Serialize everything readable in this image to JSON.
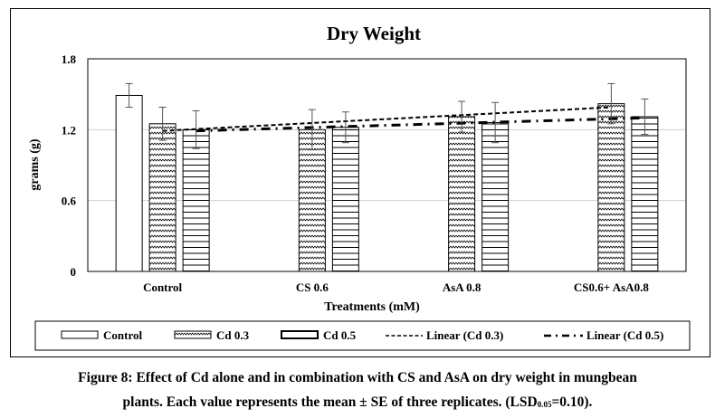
{
  "chart_data": {
    "type": "bar",
    "title": "Dry Weight",
    "xlabel": "Treatments (mM)",
    "ylabel": "grams (g)",
    "ylim": [
      0,
      1.8
    ],
    "yticks": [
      "0",
      "0.6",
      "1.2",
      "1.8"
    ],
    "ytick_values": [
      0,
      0.6,
      1.2,
      1.8
    ],
    "grid": true,
    "categories": [
      "Control",
      "CS 0.6",
      "AsA 0.8",
      "CS0.6+ AsA0.8"
    ],
    "series": [
      {
        "name": "Control",
        "pattern": "plain",
        "values": [
          1.49,
          null,
          null,
          null
        ],
        "errors": [
          0.1,
          null,
          null,
          null
        ]
      },
      {
        "name": "Cd 0.3",
        "pattern": "zigzag",
        "values": [
          1.25,
          1.2,
          1.31,
          1.42
        ],
        "errors": [
          0.14,
          0.17,
          0.13,
          0.17
        ]
      },
      {
        "name": "Cd 0.5",
        "pattern": "horizontal",
        "values": [
          1.2,
          1.22,
          1.26,
          1.31
        ],
        "errors": [
          0.16,
          0.13,
          0.17,
          0.15
        ]
      }
    ],
    "trendlines": [
      {
        "name": "Linear (Cd 0.3)",
        "series": "Cd 0.3",
        "style": "dashed",
        "start": 1.19,
        "end": 1.39
      },
      {
        "name": "Linear (Cd 0.5)",
        "series": "Cd 0.5",
        "style": "dash-dot",
        "start": 1.19,
        "end": 1.3
      }
    ],
    "legend": [
      "Control",
      "Cd 0.3",
      "Cd 0.5",
      "Linear (Cd 0.3)",
      "Linear (Cd 0.5)"
    ],
    "legend_position": "bottom"
  },
  "caption": {
    "line1": "Figure 8: Effect of Cd alone and in combination with CS and AsA on dry weight in mungbean",
    "line2_pre": "plants. Each value represents the mean ± SE of three replicates. (LSD",
    "line2_sub": "0.05",
    "line2_post": "=0.10)."
  }
}
